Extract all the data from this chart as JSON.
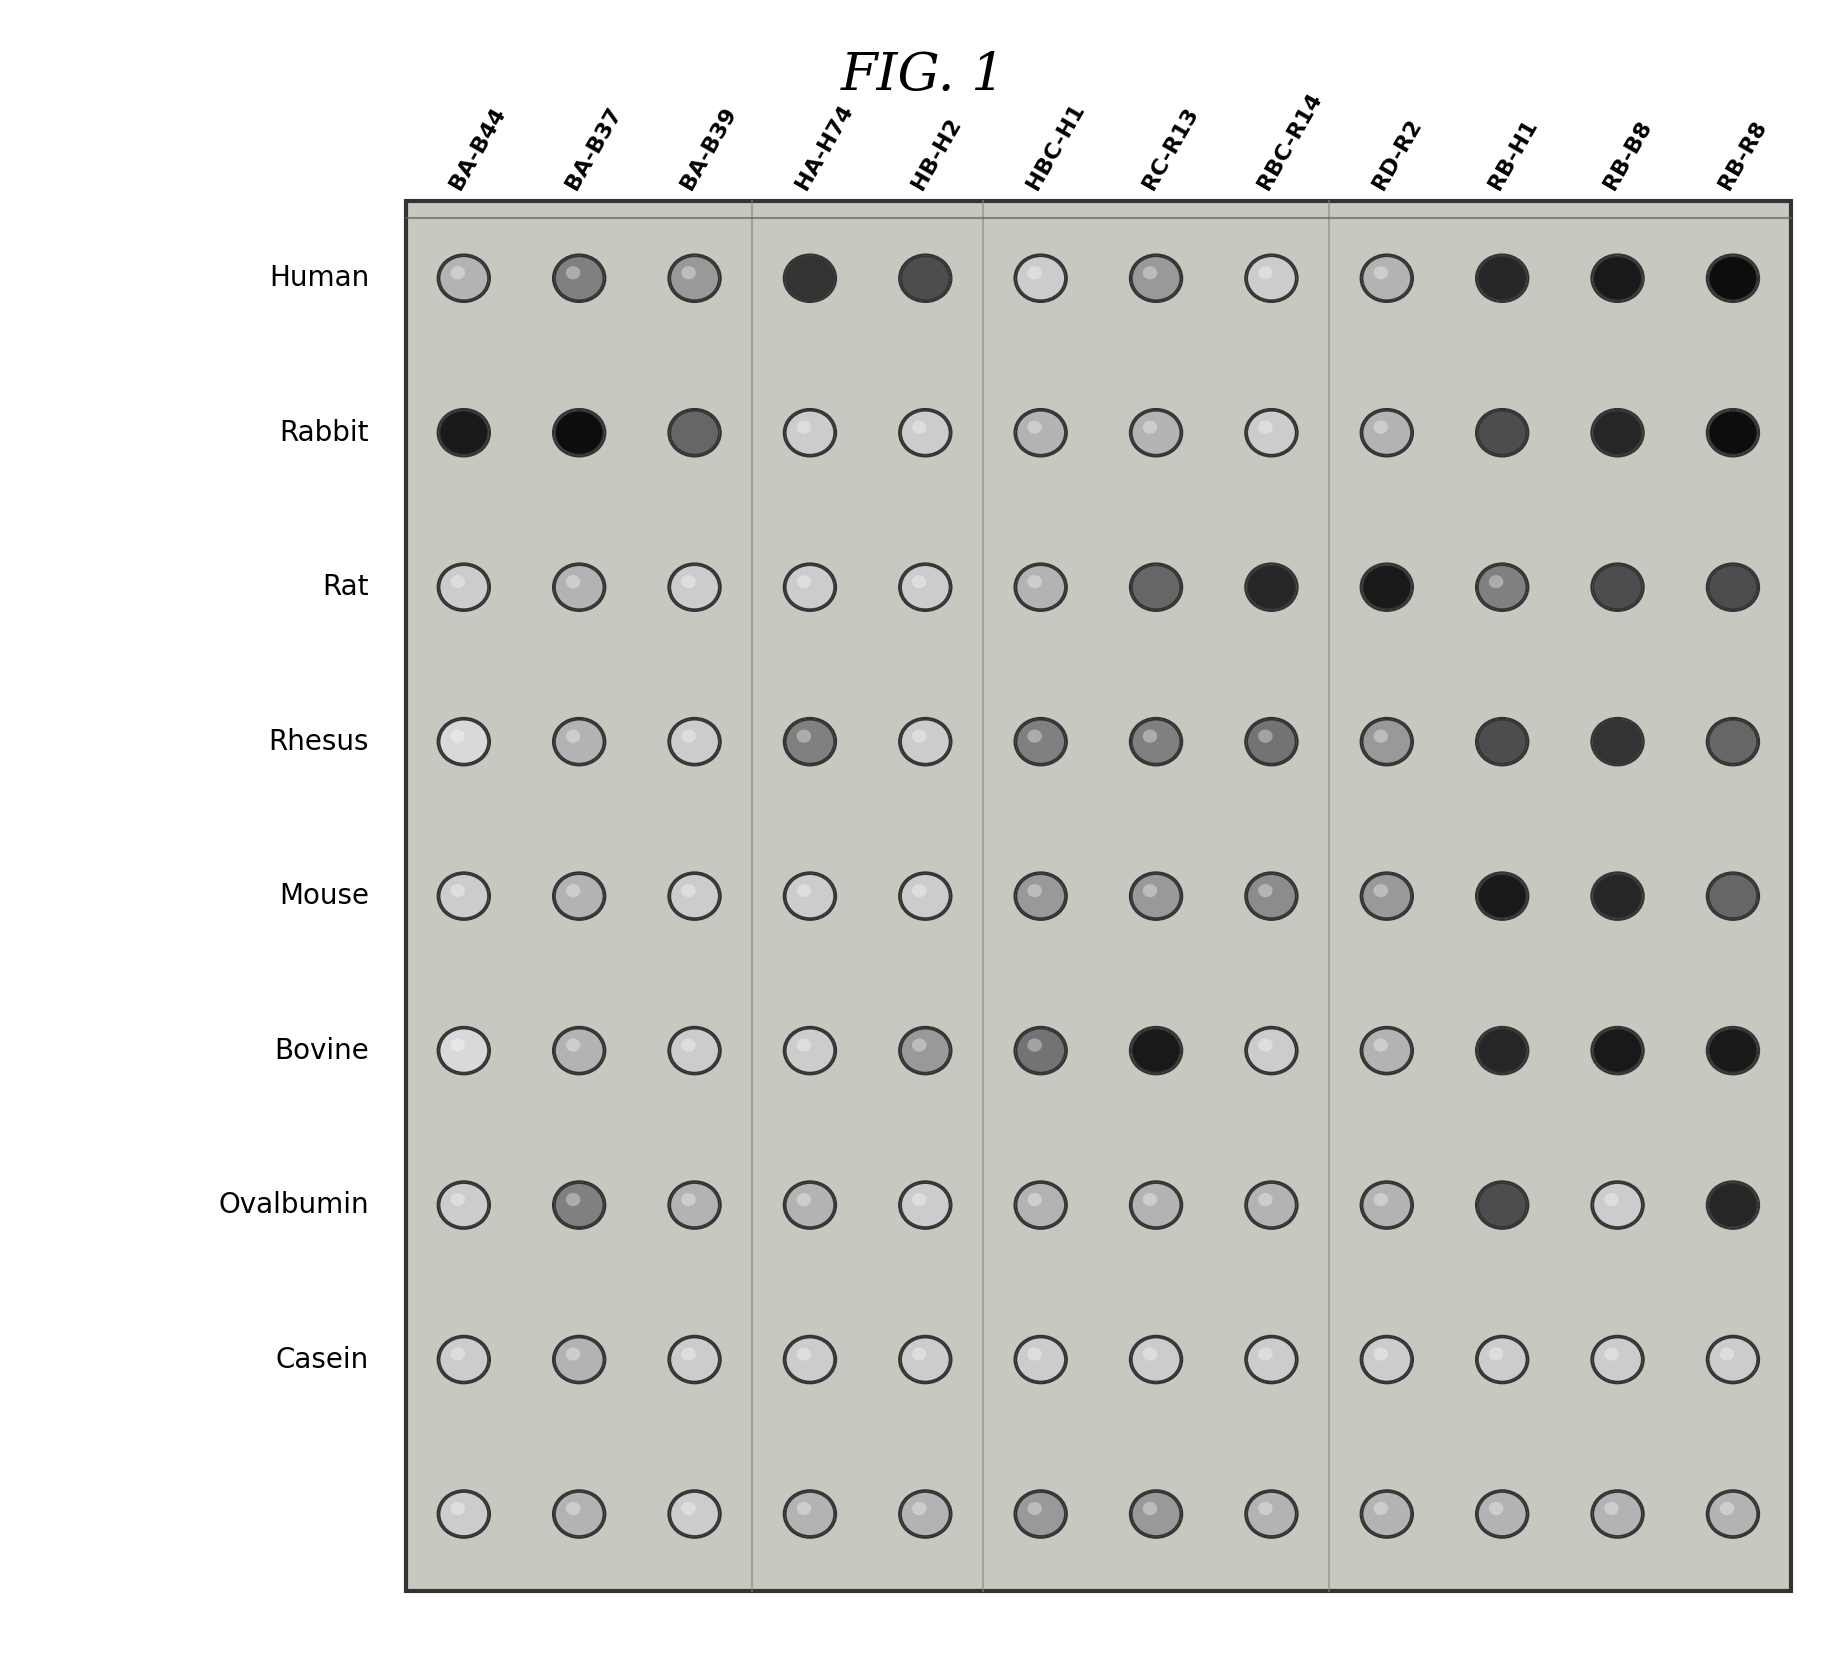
{
  "title": "FIG. 1",
  "columns": [
    "BA-B44",
    "BA-B37",
    "BA-B39",
    "HA-H74",
    "HB-H2",
    "HBC-H1",
    "RC-R13",
    "RBC-R14",
    "RD-R2",
    "RB-H1",
    "RB-B8",
    "RB-R8"
  ],
  "rows": [
    "Human",
    "Rabbit",
    "Rat",
    "Rhesus",
    "Mouse",
    "Bovine",
    "Ovalbumin",
    "Casein",
    ""
  ],
  "intensities": [
    [
      0.3,
      0.5,
      0.4,
      0.8,
      0.7,
      0.2,
      0.4,
      0.2,
      0.3,
      0.85,
      0.9,
      0.95
    ],
    [
      0.9,
      0.95,
      0.6,
      0.2,
      0.2,
      0.3,
      0.3,
      0.2,
      0.3,
      0.7,
      0.85,
      0.95
    ],
    [
      0.2,
      0.3,
      0.2,
      0.2,
      0.2,
      0.3,
      0.6,
      0.85,
      0.9,
      0.5,
      0.7,
      0.7
    ],
    [
      0.15,
      0.3,
      0.2,
      0.5,
      0.2,
      0.5,
      0.5,
      0.55,
      0.4,
      0.7,
      0.8,
      0.6
    ],
    [
      0.2,
      0.3,
      0.2,
      0.2,
      0.2,
      0.4,
      0.4,
      0.45,
      0.4,
      0.9,
      0.85,
      0.6
    ],
    [
      0.15,
      0.3,
      0.2,
      0.2,
      0.4,
      0.55,
      0.9,
      0.2,
      0.3,
      0.85,
      0.9,
      0.9
    ],
    [
      0.2,
      0.5,
      0.3,
      0.3,
      0.2,
      0.3,
      0.3,
      0.3,
      0.3,
      0.7,
      0.2,
      0.85
    ],
    [
      0.2,
      0.3,
      0.2,
      0.2,
      0.2,
      0.2,
      0.2,
      0.2,
      0.2,
      0.2,
      0.2,
      0.2
    ],
    [
      0.2,
      0.3,
      0.2,
      0.3,
      0.3,
      0.4,
      0.4,
      0.3,
      0.3,
      0.3,
      0.3,
      0.3
    ]
  ],
  "background_color": "#ffffff",
  "plate_bg": "#c8c8c0",
  "well_ring_color": "#333333",
  "well_fill_light": "#e8e8e0",
  "well_fill_dark": "#111111"
}
